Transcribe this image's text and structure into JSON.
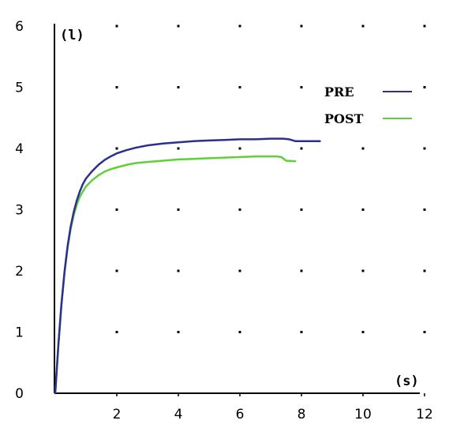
{
  "chart_data": {
    "type": "line",
    "xlabel": "(s)",
    "ylabel": "(l)",
    "xlim": [
      -0.3,
      12
    ],
    "ylim": [
      0,
      6
    ],
    "x_ticks": [
      2,
      4,
      6,
      8,
      10,
      12
    ],
    "y_ticks": [
      0,
      1,
      2,
      3,
      4,
      5,
      6
    ],
    "grid": "dotted",
    "legend": "top-right",
    "series": [
      {
        "name": "PRE",
        "color": "#2b2f8f",
        "x": [
          0.0,
          0.1,
          0.2,
          0.3,
          0.4,
          0.5,
          0.6,
          0.7,
          0.8,
          0.9,
          1.0,
          1.2,
          1.4,
          1.6,
          1.8,
          2.0,
          2.3,
          2.6,
          3.0,
          3.5,
          4.0,
          4.5,
          5.0,
          5.5,
          6.0,
          6.5,
          7.0,
          7.4,
          7.6,
          7.8,
          8.0,
          8.3,
          8.6
        ],
        "y": [
          0.0,
          0.78,
          1.45,
          1.98,
          2.4,
          2.72,
          2.96,
          3.15,
          3.3,
          3.42,
          3.51,
          3.63,
          3.73,
          3.81,
          3.87,
          3.92,
          3.97,
          4.01,
          4.05,
          4.08,
          4.1,
          4.12,
          4.13,
          4.14,
          4.15,
          4.15,
          4.16,
          4.16,
          4.15,
          4.12,
          4.12,
          4.12,
          4.12
        ]
      },
      {
        "name": "POST",
        "color": "#5fcf3a",
        "x": [
          0.0,
          0.1,
          0.2,
          0.3,
          0.4,
          0.5,
          0.6,
          0.7,
          0.8,
          0.9,
          1.0,
          1.2,
          1.4,
          1.6,
          1.8,
          2.0,
          2.3,
          2.6,
          3.0,
          3.5,
          4.0,
          4.5,
          5.0,
          5.5,
          6.0,
          6.5,
          7.0,
          7.2,
          7.35,
          7.5,
          7.8
        ],
        "y": [
          0.0,
          0.77,
          1.43,
          1.96,
          2.37,
          2.68,
          2.91,
          3.08,
          3.21,
          3.3,
          3.38,
          3.48,
          3.56,
          3.62,
          3.66,
          3.69,
          3.73,
          3.76,
          3.78,
          3.8,
          3.82,
          3.83,
          3.84,
          3.85,
          3.86,
          3.87,
          3.87,
          3.87,
          3.86,
          3.8,
          3.79
        ]
      }
    ]
  }
}
